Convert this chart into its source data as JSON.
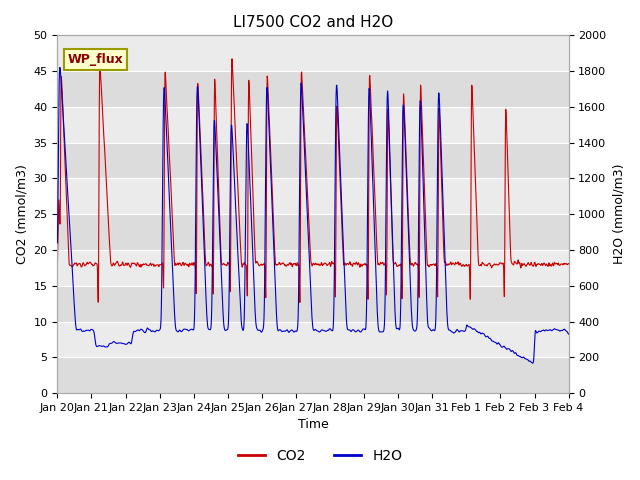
{
  "title": "LI7500 CO2 and H2O",
  "xlabel": "Time",
  "ylabel_left": "CO2 (mmol/m3)",
  "ylabel_right": "H2O (mmol/m3)",
  "ylim_left": [
    0,
    50
  ],
  "ylim_right": [
    0,
    2000
  ],
  "yticks_left": [
    0,
    5,
    10,
    15,
    20,
    25,
    30,
    35,
    40,
    45,
    50
  ],
  "yticks_right": [
    0,
    200,
    400,
    600,
    800,
    1000,
    1200,
    1400,
    1600,
    1800,
    2000
  ],
  "xtick_labels": [
    "Jan 20",
    "Jan 21",
    "Jan 22",
    "Jan 23",
    "Jan 24",
    "Jan 25",
    "Jan 26",
    "Jan 27",
    "Jan 28",
    "Jan 29",
    "Jan 30",
    "Jan 31",
    "Feb 1",
    "Feb 2",
    "Feb 3",
    "Feb 4"
  ],
  "annotation_text": "WP_flux",
  "legend_labels": [
    "CO2",
    "H2O"
  ],
  "co2_color": "#cc0000",
  "h2o_color": "#0000cc",
  "plot_bg_dark": "#dcdcdc",
  "plot_bg_light": "#ebebeb",
  "grid_color": "white",
  "title_fontsize": 11,
  "label_fontsize": 9,
  "tick_fontsize": 8
}
